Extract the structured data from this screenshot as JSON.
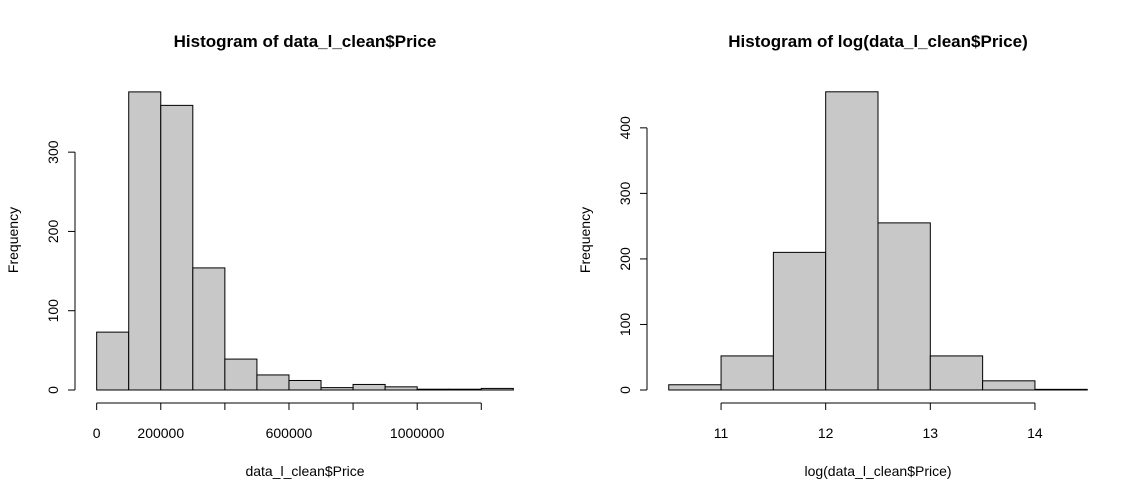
{
  "chart_data": [
    {
      "type": "bar",
      "title": "Histogram of data_l_clean$Price",
      "xlabel": "data_l_clean$Price",
      "ylabel": "Frequency",
      "bin_edges": [
        0,
        100000,
        200000,
        300000,
        400000,
        500000,
        600000,
        700000,
        800000,
        900000,
        1000000,
        1100000,
        1200000,
        1300000
      ],
      "values": [
        73,
        376,
        359,
        154,
        39,
        19,
        12,
        3,
        7,
        4,
        1,
        1,
        2
      ],
      "xticks": [
        0,
        200000,
        600000,
        1000000
      ],
      "xtick_labels": [
        "0",
        "200000",
        "600000",
        "1000000"
      ],
      "xaxis_range": [
        0,
        1200000
      ],
      "xaxis_minor_ticks": [
        0,
        200000,
        400000,
        600000,
        800000,
        1000000,
        1200000
      ],
      "yticks": [
        0,
        100,
        200,
        300
      ],
      "ytick_labels": [
        "0",
        "100",
        "200",
        "300"
      ],
      "xlim": [
        -52000,
        1352000
      ],
      "ylim": [
        0,
        391
      ],
      "bar_color": "#c8c8c8",
      "grid": false
    },
    {
      "type": "bar",
      "title": "Histogram of log(data_l_clean$Price)",
      "xlabel": "log(data_l_clean$Price)",
      "ylabel": "Frequency",
      "bin_edges": [
        10.5,
        11,
        11.5,
        12,
        12.5,
        13,
        13.5,
        14,
        14.5
      ],
      "values": [
        8,
        52,
        210,
        455,
        255,
        52,
        14,
        1
      ],
      "xticks": [
        11,
        12,
        13,
        14
      ],
      "xtick_labels": [
        "11",
        "12",
        "13",
        "14"
      ],
      "xaxis_range": [
        11,
        14
      ],
      "xaxis_minor_ticks": [
        11,
        12,
        13,
        14
      ],
      "yticks": [
        0,
        100,
        200,
        300,
        400
      ],
      "ytick_labels": [
        "0",
        "100",
        "200",
        "300",
        "400"
      ],
      "xlim": [
        10.34,
        14.66
      ],
      "ylim": [
        0,
        473
      ],
      "bar_color": "#c8c8c8",
      "grid": false
    }
  ]
}
